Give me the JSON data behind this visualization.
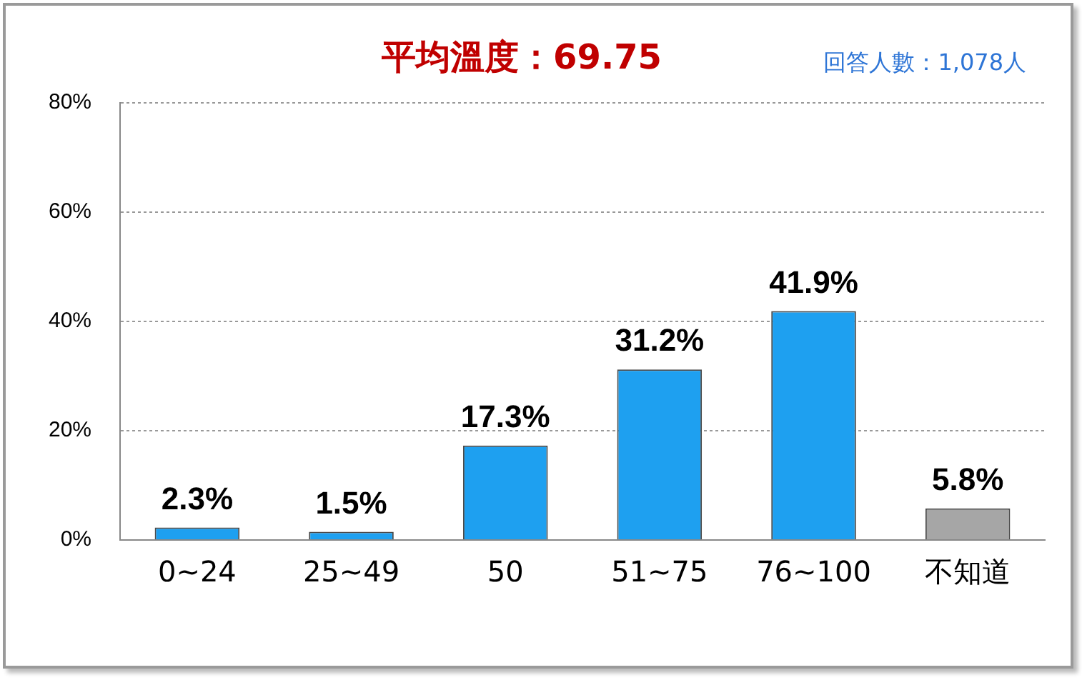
{
  "chart_data": {
    "type": "bar",
    "title": "平均溫度：69.75",
    "subtitle": "回答人數：1,078人",
    "categories": [
      "0~24",
      "25~49",
      "50",
      "51~75",
      "76~100",
      "不知道"
    ],
    "values": [
      2.3,
      1.5,
      17.3,
      31.2,
      41.9,
      5.8
    ],
    "colors": [
      "#1ea0f0",
      "#1ea0f0",
      "#1ea0f0",
      "#1ea0f0",
      "#1ea0f0",
      "#a6a6a6"
    ],
    "value_labels": [
      "2.3%",
      "1.5%",
      "17.3%",
      "31.2%",
      "41.9%",
      "5.8%"
    ],
    "ylim": [
      0,
      80
    ],
    "yticks": [
      {
        "value": 0,
        "label": "0%"
      },
      {
        "value": 20,
        "label": "20%"
      },
      {
        "value": 40,
        "label": "40%"
      },
      {
        "value": 60,
        "label": "60%"
      },
      {
        "value": 80,
        "label": "80%"
      }
    ],
    "grid": "y",
    "legend": false
  }
}
